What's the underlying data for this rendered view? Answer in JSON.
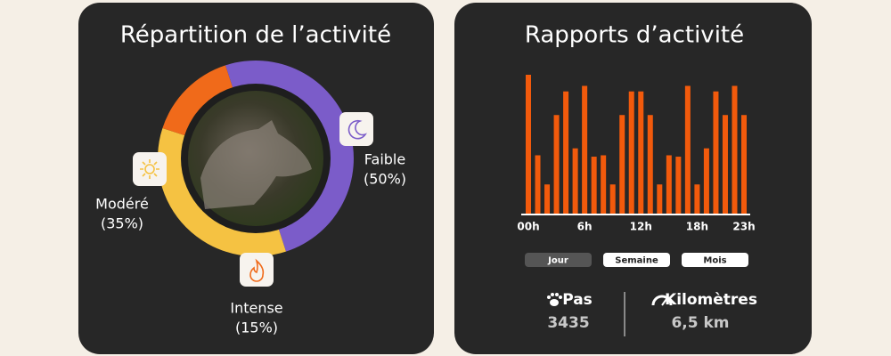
{
  "chart_data": [
    {
      "type": "donut",
      "title": "Répartition de l’activité",
      "categories": [
        "Faible",
        "Modéré",
        "Intense"
      ],
      "values": [
        50,
        35,
        15
      ],
      "value_labels": [
        "(50%)",
        "(35%)",
        "(15%)"
      ],
      "colors": [
        "#7b5cc9",
        "#f5c242",
        "#f06a1a"
      ]
    },
    {
      "type": "bar",
      "title": "Rapports d’activité",
      "categories": [
        "00h",
        null,
        null,
        null,
        null,
        null,
        "6h",
        null,
        null,
        null,
        null,
        null,
        "12h",
        null,
        null,
        null,
        null,
        null,
        "18h",
        null,
        null,
        null,
        null,
        "23h"
      ],
      "values": [
        100,
        42,
        21,
        71,
        88,
        47,
        92,
        41,
        42,
        21,
        71,
        88,
        88,
        71,
        21,
        42,
        41,
        92,
        21,
        47,
        88,
        71,
        92,
        71
      ],
      "color": "#f25a0c"
    }
  ],
  "tabs": [
    {
      "label": "Jour",
      "selected": true
    },
    {
      "label": "Semaine",
      "selected": false
    },
    {
      "label": "Mois",
      "selected": false
    }
  ],
  "stats": [
    {
      "label": "Pas",
      "value": 3435
    },
    {
      "label": "Kilomètres",
      "value": "6,5 km"
    }
  ]
}
